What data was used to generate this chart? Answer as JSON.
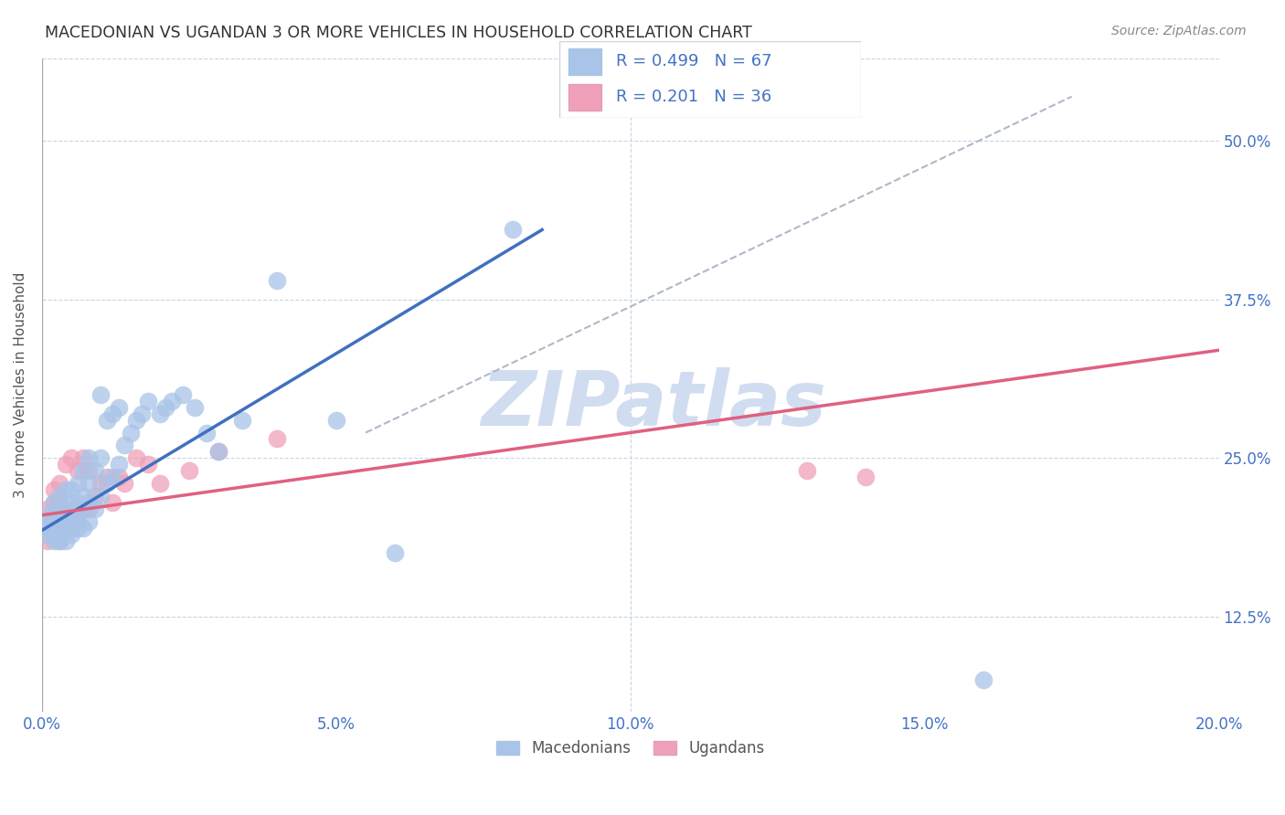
{
  "title": "MACEDONIAN VS UGANDAN 3 OR MORE VEHICLES IN HOUSEHOLD CORRELATION CHART",
  "source": "Source: ZipAtlas.com",
  "ylabel_label": "3 or more Vehicles in Household",
  "xlim": [
    0.0,
    0.2
  ],
  "ylim": [
    0.05,
    0.565
  ],
  "x_tick_vals": [
    0.0,
    0.05,
    0.1,
    0.15,
    0.2
  ],
  "x_tick_labels": [
    "0.0%",
    "5.0%",
    "10.0%",
    "15.0%",
    "20.0%"
  ],
  "y_tick_vals": [
    0.125,
    0.25,
    0.375,
    0.5
  ],
  "y_tick_labels": [
    "12.5%",
    "25.0%",
    "37.5%",
    "50.0%"
  ],
  "macedonian_color": "#a8c4e8",
  "ugandan_color": "#f0a0b8",
  "mac_line_color": "#4070c0",
  "uga_line_color": "#e06080",
  "dash_color": "#b0b8c8",
  "watermark": "ZIPatlas",
  "watermark_color": "#d0ddf0",
  "legend_text_color": "#4472c4",
  "legend_box_color": "#e8eef8",
  "mac_scatter_x": [
    0.001,
    0.001,
    0.001,
    0.001,
    0.002,
    0.002,
    0.002,
    0.002,
    0.002,
    0.002,
    0.003,
    0.003,
    0.003,
    0.003,
    0.003,
    0.003,
    0.004,
    0.004,
    0.004,
    0.004,
    0.004,
    0.005,
    0.005,
    0.005,
    0.005,
    0.005,
    0.006,
    0.006,
    0.006,
    0.006,
    0.007,
    0.007,
    0.007,
    0.007,
    0.008,
    0.008,
    0.008,
    0.008,
    0.009,
    0.009,
    0.01,
    0.01,
    0.01,
    0.011,
    0.011,
    0.012,
    0.012,
    0.013,
    0.013,
    0.014,
    0.015,
    0.016,
    0.017,
    0.018,
    0.02,
    0.021,
    0.022,
    0.024,
    0.026,
    0.028,
    0.03,
    0.034,
    0.04,
    0.05,
    0.06,
    0.08,
    0.16
  ],
  "mac_scatter_y": [
    0.19,
    0.195,
    0.2,
    0.205,
    0.185,
    0.19,
    0.195,
    0.2,
    0.205,
    0.215,
    0.185,
    0.19,
    0.195,
    0.2,
    0.21,
    0.22,
    0.185,
    0.195,
    0.2,
    0.21,
    0.225,
    0.19,
    0.195,
    0.2,
    0.215,
    0.225,
    0.195,
    0.205,
    0.215,
    0.23,
    0.195,
    0.21,
    0.22,
    0.24,
    0.2,
    0.215,
    0.23,
    0.25,
    0.21,
    0.24,
    0.22,
    0.25,
    0.3,
    0.23,
    0.28,
    0.235,
    0.285,
    0.245,
    0.29,
    0.26,
    0.27,
    0.28,
    0.285,
    0.295,
    0.285,
    0.29,
    0.295,
    0.3,
    0.29,
    0.27,
    0.255,
    0.28,
    0.39,
    0.28,
    0.175,
    0.43,
    0.075
  ],
  "uga_scatter_x": [
    0.001,
    0.001,
    0.002,
    0.002,
    0.002,
    0.002,
    0.003,
    0.003,
    0.003,
    0.003,
    0.004,
    0.004,
    0.004,
    0.005,
    0.005,
    0.005,
    0.006,
    0.006,
    0.007,
    0.007,
    0.008,
    0.008,
    0.009,
    0.01,
    0.011,
    0.012,
    0.013,
    0.014,
    0.016,
    0.018,
    0.02,
    0.025,
    0.03,
    0.04,
    0.13,
    0.14
  ],
  "uga_scatter_y": [
    0.185,
    0.21,
    0.19,
    0.2,
    0.215,
    0.225,
    0.185,
    0.2,
    0.215,
    0.23,
    0.195,
    0.205,
    0.245,
    0.195,
    0.21,
    0.25,
    0.2,
    0.24,
    0.21,
    0.25,
    0.21,
    0.24,
    0.22,
    0.23,
    0.235,
    0.215,
    0.235,
    0.23,
    0.25,
    0.245,
    0.23,
    0.24,
    0.255,
    0.265,
    0.24,
    0.235
  ],
  "mac_line_x": [
    0.0,
    0.085
  ],
  "mac_line_y": [
    0.193,
    0.43
  ],
  "uga_line_x": [
    0.0,
    0.2
  ],
  "uga_line_y": [
    0.205,
    0.335
  ],
  "dash_line_x": [
    0.055,
    0.175
  ],
  "dash_line_y": [
    0.27,
    0.535
  ]
}
